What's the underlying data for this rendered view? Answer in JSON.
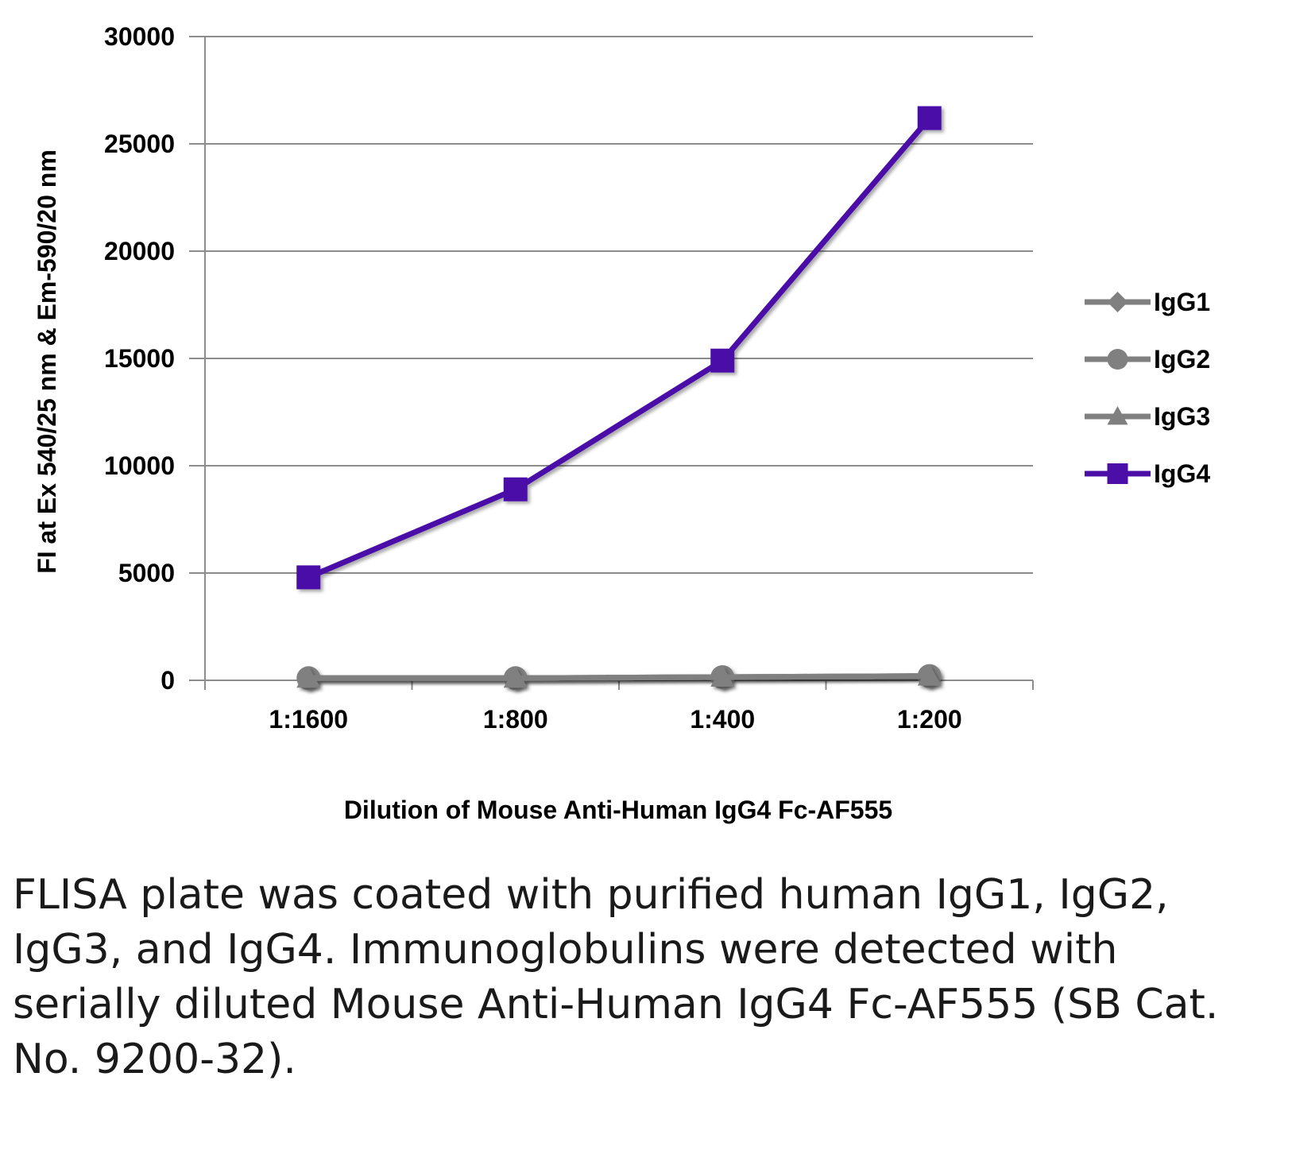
{
  "chart_data": {
    "type": "line",
    "title": "",
    "xlabel": "Dilution of Mouse Anti-Human IgG4 Fc-AF555",
    "ylabel": "FI at Ex 540/25 nm & Em-590/20 nm",
    "categories": [
      "1:1600",
      "1:800",
      "1:400",
      "1:200"
    ],
    "ylim": [
      0,
      30000
    ],
    "yticks": [
      0,
      5000,
      10000,
      15000,
      20000,
      25000,
      30000
    ],
    "ytick_labels": [
      "0",
      "5000",
      "10000",
      "15000",
      "20000",
      "25000",
      "30000"
    ],
    "grid": "horizontal",
    "legend_position": "right",
    "series": [
      {
        "name": "IgG1",
        "values": [
          100,
          100,
          150,
          200
        ],
        "color": "#808080",
        "marker": "diamond"
      },
      {
        "name": "IgG2",
        "values": [
          100,
          100,
          150,
          200
        ],
        "color": "#808080",
        "marker": "circle"
      },
      {
        "name": "IgG3",
        "values": [
          100,
          100,
          150,
          200
        ],
        "color": "#808080",
        "marker": "triangle"
      },
      {
        "name": "IgG4",
        "values": [
          4800,
          8900,
          14900,
          26200
        ],
        "color": "#4b0fa8",
        "marker": "square"
      }
    ]
  },
  "caption": "FLISA plate was coated with purified human IgG1, IgG2, IgG3, and IgG4.  Immunoglobulins were detected with serially diluted Mouse Anti-Human IgG4 Fc-AF555 (SB Cat. No. 9200-32)."
}
